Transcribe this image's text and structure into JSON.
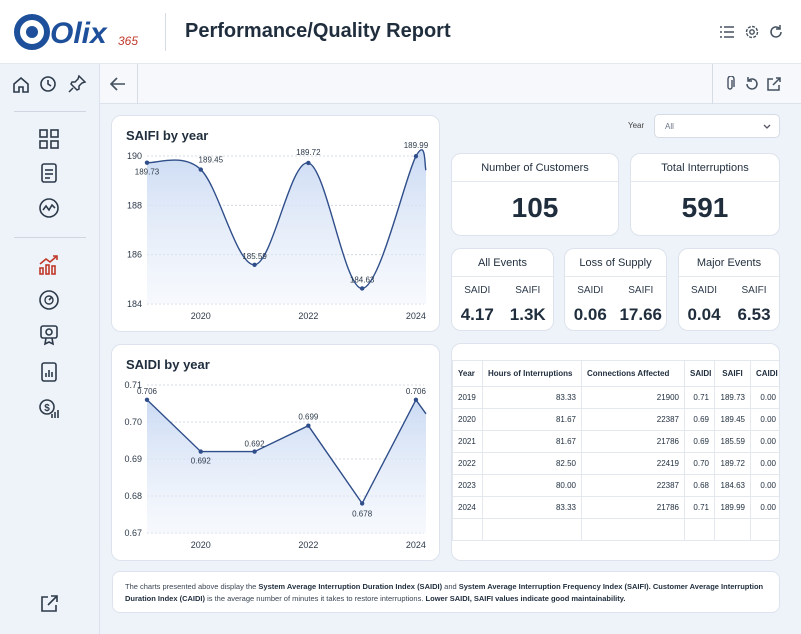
{
  "app": {
    "logo_text": "Olix",
    "logo_suffix": "365",
    "title": "Performance/Quality Report"
  },
  "header_icons": [
    "list-icon",
    "settings-icon",
    "refresh-icon"
  ],
  "rail_icons": [
    "home-icon",
    "history-icon",
    "pin-icon",
    "dashboard-icon",
    "report-icon",
    "trend-icon",
    "growth-chart-icon",
    "meter-icon",
    "certificate-icon",
    "document-chart-icon",
    "money-growth-icon",
    "external-link-icon"
  ],
  "toolbar_icons": [
    "back-arrow-icon",
    "attachment-icon",
    "reset-icon",
    "open-external-icon"
  ],
  "filter": {
    "label": "Year",
    "value": "All"
  },
  "kpis": [
    {
      "label": "Number of Customers",
      "value": "105"
    },
    {
      "label": "Total Interruptions",
      "value": "591"
    }
  ],
  "minis": [
    {
      "label": "All Events",
      "saidi_label": "SAIDI",
      "saifi_label": "SAIFI",
      "saidi": "4.17",
      "saifi": "1.3K"
    },
    {
      "label": "Loss of Supply",
      "saidi_label": "SAIDI",
      "saifi_label": "SAIFI",
      "saidi": "0.06",
      "saifi": "17.66"
    },
    {
      "label": "Major Events",
      "saidi_label": "SAIDI",
      "saifi_label": "SAIFI",
      "saidi": "0.04",
      "saifi": "6.53"
    }
  ],
  "table": {
    "headers": [
      "Year",
      "Hours of Interruptions",
      "Connections Affected",
      "SAIDI",
      "SAIFI",
      "CAIDI"
    ],
    "rows": [
      [
        "2019",
        "83.33",
        "21900",
        "0.71",
        "189.73",
        "0.00"
      ],
      [
        "2020",
        "81.67",
        "22387",
        "0.69",
        "189.45",
        "0.00"
      ],
      [
        "2021",
        "81.67",
        "21786",
        "0.69",
        "185.59",
        "0.00"
      ],
      [
        "2022",
        "82.50",
        "22419",
        "0.70",
        "189.72",
        "0.00"
      ],
      [
        "2023",
        "80.00",
        "22387",
        "0.68",
        "184.63",
        "0.00"
      ],
      [
        "2024",
        "83.33",
        "21786",
        "0.71",
        "189.99",
        "0.00"
      ]
    ]
  },
  "note": {
    "p1": "The charts presented above display the ",
    "b1": "System Average Interruption Duration Index (SAIDI)",
    "p2": " and ",
    "b2": "System Average Interruption Frequency Index (SAIFI). Customer Average Interruption Duration Index (CAIDI)",
    "p3": " is the average number of minutes it takes to restore interruptions. ",
    "b3": "Lower SAIDI, SAIFI values indicate good maintainability."
  },
  "colors": {
    "accent": "#2f4e8a",
    "fill": "#dbe6f7",
    "brand": "#1d4f9a",
    "rail_red": "#c0392b"
  },
  "chart_data": [
    {
      "type": "area",
      "title": "SAIFI by year",
      "x": [
        2019,
        2020,
        2021,
        2022,
        2023,
        2024
      ],
      "values": [
        189.73,
        189.45,
        185.59,
        189.72,
        184.63,
        189.99
      ],
      "value_labels": [
        "189.73",
        "189.45",
        "185.59",
        "189.72",
        "184.63",
        "189.99"
      ],
      "ylim": [
        184,
        190
      ],
      "yticks": [
        "184",
        "186",
        "188",
        "190"
      ],
      "xticks": [
        "2020",
        "2022",
        "2024"
      ],
      "grid": true
    },
    {
      "type": "area",
      "title": "SAIDI by year",
      "x": [
        2019,
        2020,
        2021,
        2022,
        2023,
        2024
      ],
      "values": [
        0.706,
        0.692,
        0.692,
        0.699,
        0.678,
        0.706
      ],
      "value_labels": [
        "0.706",
        "0.692",
        "0.692",
        "0.699",
        "0.678",
        "0.706"
      ],
      "ylim": [
        0.67,
        0.71
      ],
      "yticks": [
        "0.67",
        "0.68",
        "0.69",
        "0.70",
        "0.71"
      ],
      "xticks": [
        "2020",
        "2022",
        "2024"
      ],
      "grid": true
    }
  ]
}
